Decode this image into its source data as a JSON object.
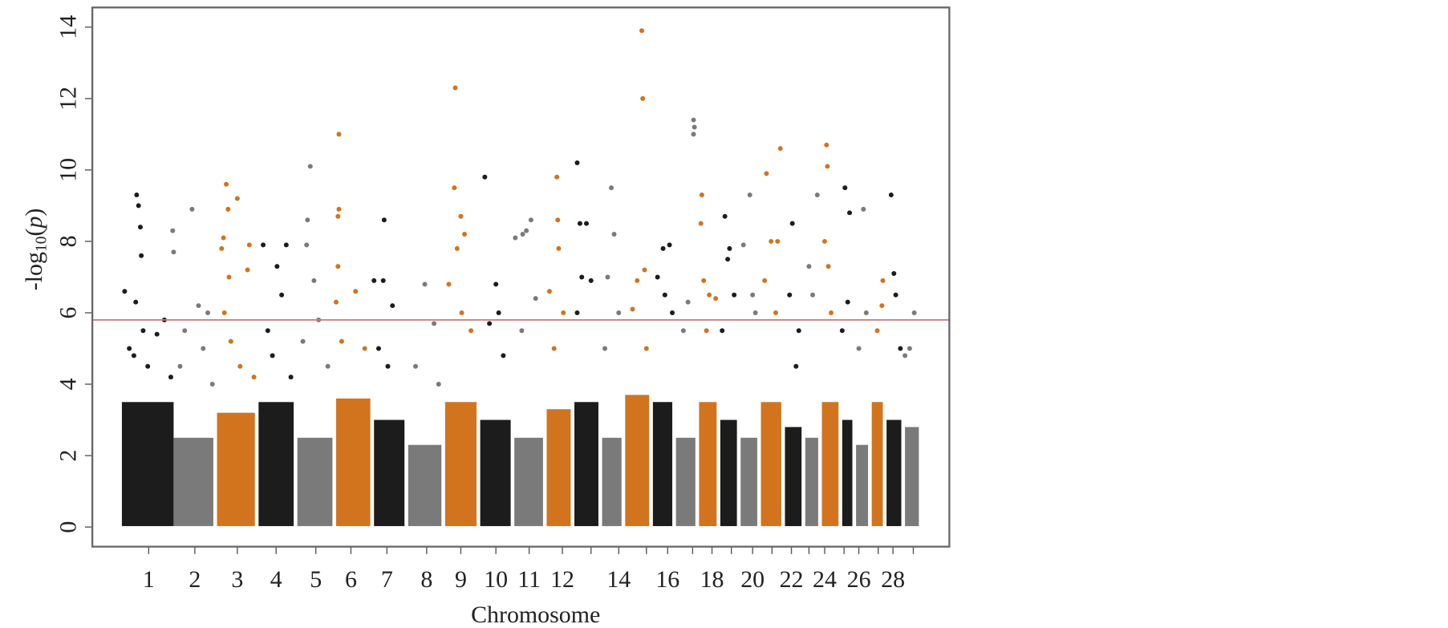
{
  "chart_data": {
    "type": "manhattan",
    "xlabel": "Chromosome",
    "ylabel": {
      "base": "-log",
      "sub": "10",
      "arg": "p"
    },
    "xlim": [
      0,
      928
    ],
    "ylim": [
      -0.55,
      14.55
    ],
    "yticks": [
      0,
      2,
      4,
      6,
      8,
      10,
      12,
      14
    ],
    "threshold": 5.8,
    "threshold_color": "#c77b7d",
    "chromosomes": [
      {
        "label": "1",
        "tick": 61,
        "start": 30,
        "end": 90,
        "color": "#1c1c1c",
        "bulk": 3.5,
        "points": [
          [
            35,
            6.6
          ],
          [
            48,
            9.3
          ],
          [
            50,
            9.0
          ],
          [
            52,
            8.4
          ],
          [
            53,
            7.6
          ],
          [
            47,
            6.3
          ],
          [
            55,
            5.5
          ],
          [
            40,
            5.0
          ],
          [
            60,
            4.5
          ],
          [
            70,
            5.4
          ],
          [
            78,
            5.8
          ],
          [
            85,
            4.2
          ],
          [
            45,
            4.8
          ]
        ]
      },
      {
        "label": "2",
        "tick": 111,
        "start": 86,
        "end": 133,
        "color": "#7a7a7a",
        "bulk": 2.5,
        "points": [
          [
            87,
            8.3
          ],
          [
            88,
            7.7
          ],
          [
            108,
            8.9
          ],
          [
            100,
            5.5
          ],
          [
            115,
            6.2
          ],
          [
            125,
            6.0
          ],
          [
            95,
            4.5
          ],
          [
            120,
            5.0
          ],
          [
            130,
            4.0
          ]
        ]
      },
      {
        "label": "3",
        "tick": 157,
        "start": 133,
        "end": 178,
        "color": "#d2731e",
        "bulk": 3.2,
        "points": [
          [
            145,
            9.6
          ],
          [
            157,
            9.2
          ],
          [
            147,
            8.9
          ],
          [
            142,
            8.1
          ],
          [
            140,
            7.8
          ],
          [
            148,
            7.0
          ],
          [
            143,
            6.0
          ],
          [
            170,
            7.9
          ],
          [
            168,
            7.2
          ],
          [
            150,
            5.2
          ],
          [
            160,
            4.5
          ],
          [
            175,
            4.2
          ]
        ]
      },
      {
        "label": "4",
        "tick": 199,
        "start": 178,
        "end": 220,
        "color": "#1c1c1c",
        "bulk": 3.5,
        "points": [
          [
            185,
            7.9
          ],
          [
            200,
            7.3
          ],
          [
            210,
            7.9
          ],
          [
            205,
            6.5
          ],
          [
            190,
            5.5
          ],
          [
            195,
            4.8
          ],
          [
            215,
            4.2
          ]
        ]
      },
      {
        "label": "5",
        "tick": 242,
        "start": 220,
        "end": 262,
        "color": "#7a7a7a",
        "bulk": 2.5,
        "points": [
          [
            236,
            10.1
          ],
          [
            233,
            8.6
          ],
          [
            232,
            7.9
          ],
          [
            240,
            6.9
          ],
          [
            245,
            5.8
          ],
          [
            228,
            5.2
          ],
          [
            255,
            4.5
          ]
        ]
      },
      {
        "label": "6",
        "tick": 280,
        "start": 262,
        "end": 303,
        "color": "#d2731e",
        "bulk": 3.6,
        "points": [
          [
            267,
            11.0
          ],
          [
            267,
            8.9
          ],
          [
            266,
            8.7
          ],
          [
            266,
            7.3
          ],
          [
            264,
            6.3
          ],
          [
            270,
            5.2
          ],
          [
            285,
            6.6
          ],
          [
            295,
            5.0
          ]
        ]
      },
      {
        "label": "7",
        "tick": 319,
        "start": 303,
        "end": 340,
        "color": "#1c1c1c",
        "bulk": 3.0,
        "points": [
          [
            316,
            8.6
          ],
          [
            305,
            6.9
          ],
          [
            315,
            6.9
          ],
          [
            325,
            6.2
          ],
          [
            310,
            5.0
          ],
          [
            320,
            4.5
          ]
        ]
      },
      {
        "label": "8",
        "tick": 362,
        "start": 340,
        "end": 380,
        "color": "#7a7a7a",
        "bulk": 2.3,
        "points": [
          [
            360,
            6.8
          ],
          [
            370,
            5.7
          ],
          [
            350,
            4.5
          ],
          [
            375,
            4.0
          ]
        ]
      },
      {
        "label": "9",
        "tick": 399,
        "start": 380,
        "end": 418,
        "color": "#d2731e",
        "bulk": 3.5,
        "points": [
          [
            393,
            12.3
          ],
          [
            392,
            9.5
          ],
          [
            399,
            8.7
          ],
          [
            403,
            8.2
          ],
          [
            395,
            7.8
          ],
          [
            386,
            6.8
          ],
          [
            400,
            6.0
          ],
          [
            410,
            5.5
          ]
        ]
      },
      {
        "label": "10",
        "tick": 437,
        "start": 418,
        "end": 455,
        "color": "#1c1c1c",
        "bulk": 3.0,
        "points": [
          [
            425,
            9.8
          ],
          [
            437,
            6.8
          ],
          [
            440,
            6.0
          ],
          [
            430,
            5.7
          ],
          [
            445,
            4.8
          ]
        ]
      },
      {
        "label": "11",
        "tick": 473,
        "start": 455,
        "end": 490,
        "color": "#7a7a7a",
        "bulk": 2.5,
        "points": [
          [
            458,
            8.1
          ],
          [
            466,
            8.2
          ],
          [
            475,
            8.6
          ],
          [
            470,
            8.3
          ],
          [
            480,
            6.4
          ],
          [
            465,
            5.5
          ]
        ]
      },
      {
        "label": "12",
        "tick": 509,
        "start": 490,
        "end": 520,
        "color": "#d2731e",
        "bulk": 3.3,
        "points": [
          [
            503,
            9.8
          ],
          [
            504,
            8.6
          ],
          [
            505,
            7.8
          ],
          [
            495,
            6.6
          ],
          [
            510,
            6.0
          ],
          [
            500,
            5.0
          ]
        ]
      },
      {
        "label": null,
        "tick": 540,
        "start": 520,
        "end": 550,
        "color": "#1c1c1c",
        "bulk": 3.5,
        "points": [
          [
            525,
            10.2
          ],
          [
            528,
            8.5
          ],
          [
            535,
            8.5
          ],
          [
            530,
            7.0
          ],
          [
            540,
            6.9
          ],
          [
            525,
            6.0
          ]
        ]
      },
      {
        "label": "14",
        "tick": 570,
        "start": 550,
        "end": 575,
        "color": "#7a7a7a",
        "bulk": 2.5,
        "points": [
          [
            562,
            9.5
          ],
          [
            565,
            8.2
          ],
          [
            558,
            7.0
          ],
          [
            570,
            6.0
          ],
          [
            555,
            5.0
          ]
        ]
      },
      {
        "label": null,
        "tick": 600,
        "start": 575,
        "end": 605,
        "color": "#d2731e",
        "bulk": 3.7,
        "points": [
          [
            595,
            13.9
          ],
          [
            596,
            12.0
          ],
          [
            598,
            7.2
          ],
          [
            590,
            6.9
          ],
          [
            585,
            6.1
          ],
          [
            600,
            5.0
          ]
        ]
      },
      {
        "label": "16",
        "tick": 623,
        "start": 605,
        "end": 630,
        "color": "#1c1c1c",
        "bulk": 3.5,
        "points": [
          [
            618,
            7.8
          ],
          [
            625,
            7.9
          ],
          [
            612,
            7.0
          ],
          [
            620,
            6.5
          ],
          [
            628,
            6.0
          ]
        ]
      },
      {
        "label": null,
        "tick": 650,
        "start": 630,
        "end": 655,
        "color": "#7a7a7a",
        "bulk": 2.5,
        "points": [
          [
            651,
            11.4
          ],
          [
            652,
            11.2
          ],
          [
            651,
            11.0
          ],
          [
            645,
            6.3
          ],
          [
            640,
            5.5
          ]
        ]
      },
      {
        "label": "18",
        "tick": 671,
        "start": 655,
        "end": 678,
        "color": "#d2731e",
        "bulk": 3.5,
        "points": [
          [
            660,
            9.3
          ],
          [
            659,
            8.5
          ],
          [
            662,
            6.9
          ],
          [
            668,
            6.5
          ],
          [
            675,
            6.4
          ],
          [
            665,
            5.5
          ]
        ]
      },
      {
        "label": null,
        "tick": 692,
        "start": 678,
        "end": 700,
        "color": "#1c1c1c",
        "bulk": 3.0,
        "points": [
          [
            685,
            8.7
          ],
          [
            690,
            7.8
          ],
          [
            688,
            7.5
          ],
          [
            695,
            6.5
          ],
          [
            682,
            5.5
          ]
        ]
      },
      {
        "label": "20",
        "tick": 715,
        "start": 700,
        "end": 722,
        "color": "#7a7a7a",
        "bulk": 2.5,
        "points": [
          [
            712,
            9.3
          ],
          [
            705,
            7.9
          ],
          [
            715,
            6.5
          ],
          [
            718,
            6.0
          ]
        ]
      },
      {
        "label": null,
        "tick": 736,
        "start": 722,
        "end": 748,
        "color": "#d2731e",
        "bulk": 3.5,
        "points": [
          [
            730,
            9.9
          ],
          [
            745,
            10.6
          ],
          [
            735,
            8.0
          ],
          [
            742,
            8.0
          ],
          [
            728,
            6.9
          ],
          [
            740,
            6.0
          ]
        ]
      },
      {
        "label": "22",
        "tick": 757,
        "start": 748,
        "end": 770,
        "color": "#1c1c1c",
        "bulk": 2.8,
        "points": [
          [
            758,
            8.5
          ],
          [
            755,
            6.5
          ],
          [
            765,
            5.5
          ],
          [
            762,
            4.5
          ]
        ]
      },
      {
        "label": null,
        "tick": 776,
        "start": 770,
        "end": 788,
        "color": "#7a7a7a",
        "bulk": 2.5,
        "points": [
          [
            776,
            7.3
          ],
          [
            785,
            9.3
          ],
          [
            780,
            6.5
          ]
        ]
      },
      {
        "label": "24",
        "tick": 793,
        "start": 788,
        "end": 810,
        "color": "#d2731e",
        "bulk": 3.5,
        "points": [
          [
            795,
            10.7
          ],
          [
            796,
            10.1
          ],
          [
            793,
            8.0
          ],
          [
            797,
            7.3
          ],
          [
            800,
            6.0
          ]
        ]
      },
      {
        "label": null,
        "tick": 814,
        "start": 810,
        "end": 825,
        "color": "#1c1c1c",
        "bulk": 3.0,
        "points": [
          [
            815,
            9.5
          ],
          [
            820,
            8.8
          ],
          [
            818,
            6.3
          ],
          [
            812,
            5.5
          ]
        ]
      },
      {
        "label": "26",
        "tick": 830,
        "start": 825,
        "end": 842,
        "color": "#7a7a7a",
        "bulk": 2.3,
        "points": [
          [
            835,
            8.9
          ],
          [
            838,
            6.0
          ],
          [
            830,
            5.0
          ]
        ]
      },
      {
        "label": null,
        "tick": 851,
        "start": 842,
        "end": 858,
        "color": "#d2731e",
        "bulk": 3.5,
        "points": [
          [
            856,
            6.9
          ],
          [
            855,
            6.2
          ],
          [
            850,
            5.5
          ]
        ]
      },
      {
        "label": "28",
        "tick": 867,
        "start": 858,
        "end": 878,
        "color": "#1c1c1c",
        "bulk": 3.0,
        "points": [
          [
            865,
            9.3
          ],
          [
            868,
            7.1
          ],
          [
            870,
            6.5
          ],
          [
            875,
            5.0
          ]
        ]
      },
      {
        "label": null,
        "tick": 889,
        "start": 878,
        "end": 897,
        "color": "#7a7a7a",
        "bulk": 2.8,
        "points": [
          [
            890,
            6.0
          ],
          [
            885,
            5.0
          ],
          [
            880,
            4.8
          ]
        ]
      }
    ]
  }
}
